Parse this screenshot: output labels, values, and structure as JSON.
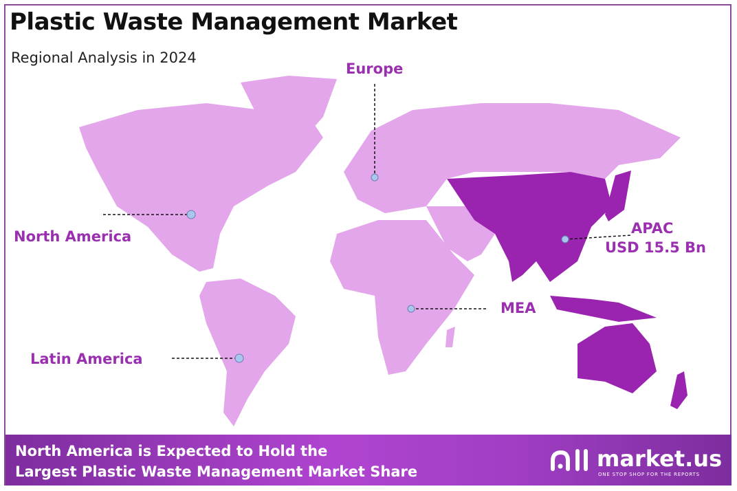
{
  "header": {
    "title": "Plastic Waste Management Market",
    "subtitle": "Regional Analysis in 2024"
  },
  "map": {
    "colors": {
      "other_regions": "#e3a6ea",
      "highlighted_region": "#9a23b0",
      "label": "#9a2fb0",
      "marker": "#a9c6ee"
    },
    "highlighted_region": "APAC",
    "regions": [
      {
        "name": "Europe"
      },
      {
        "name": "North America"
      },
      {
        "name": "APAC",
        "value": "USD 15.5 Bn"
      },
      {
        "name": "MEA"
      },
      {
        "name": "Latin America"
      }
    ]
  },
  "footer": {
    "line1": "North America is Expected to Hold the",
    "line2": "Largest Plastic Waste Management Market Share"
  },
  "logo": {
    "name": "market.us",
    "tagline": "ONE STOP SHOP FOR THE REPORTS"
  }
}
